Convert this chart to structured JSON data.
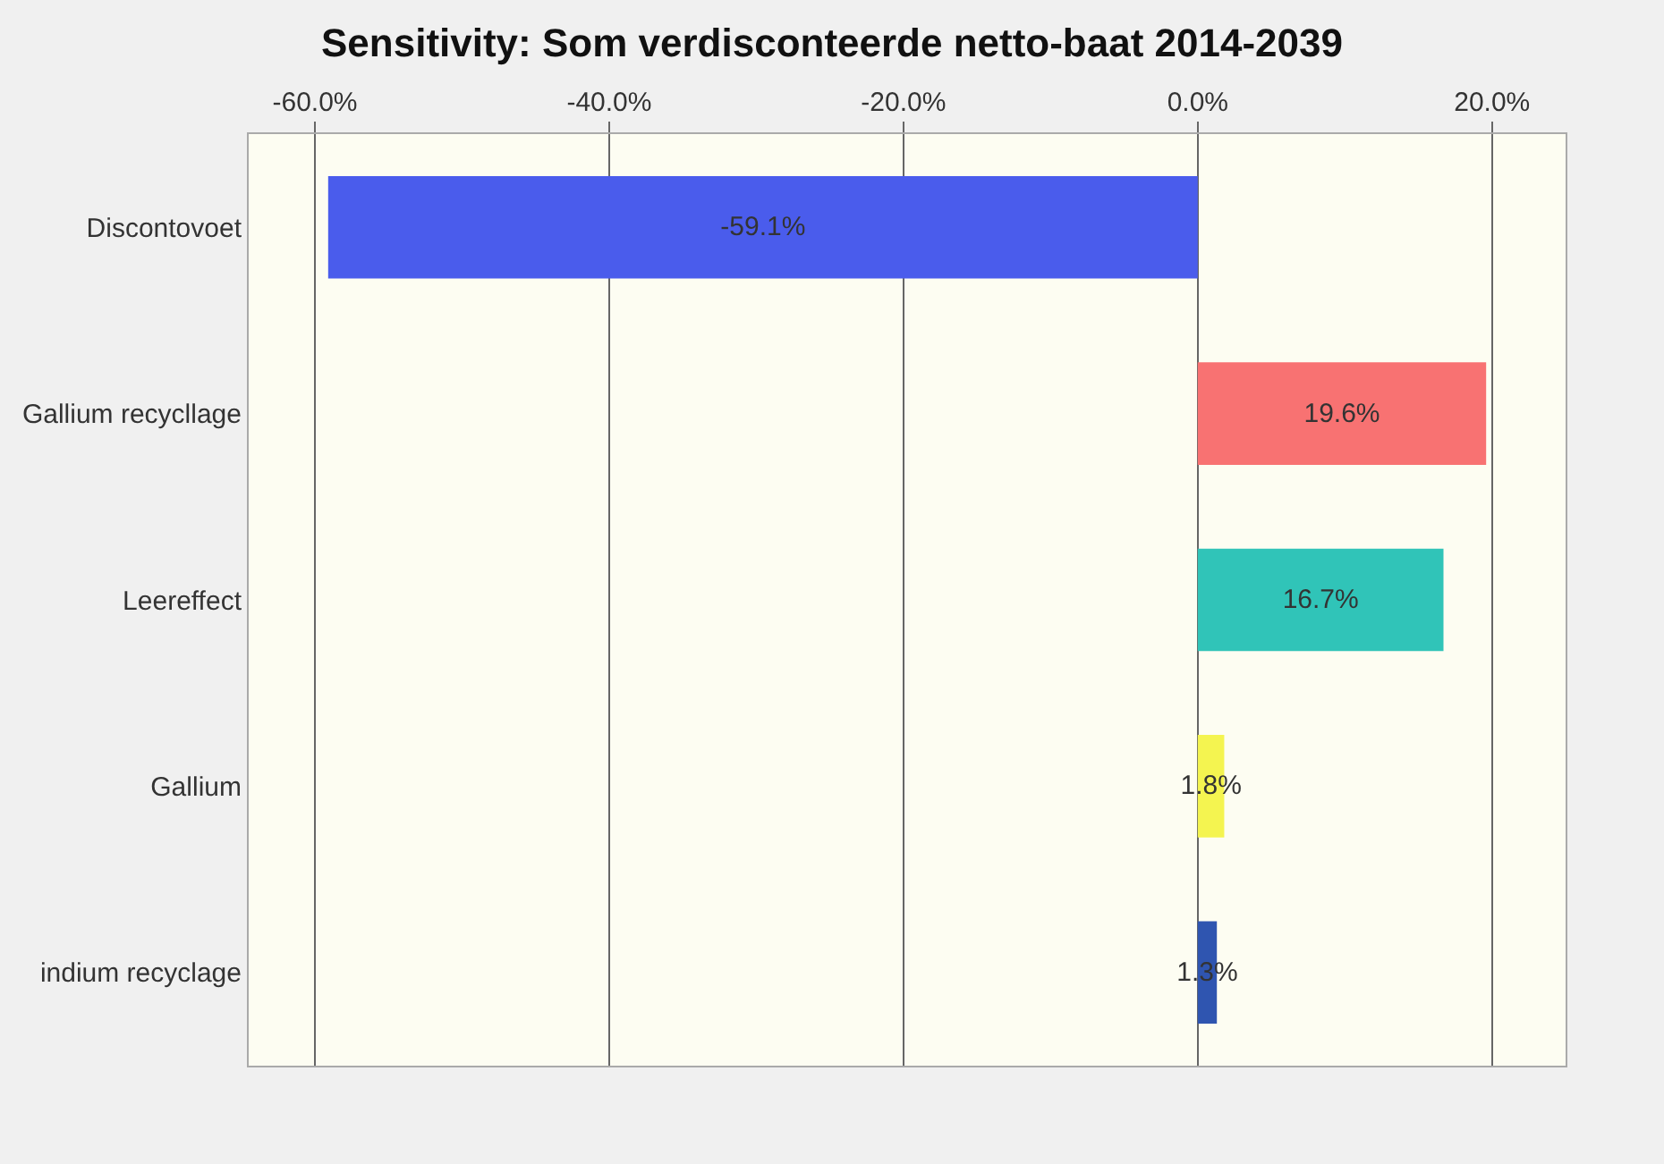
{
  "chart_data": {
    "type": "bar",
    "orientation": "horizontal",
    "title": "Sensitivity: Som verdisconteerde netto-baat 2014-2039",
    "categories": [
      "Discontovoet",
      "Gallium recycllage",
      "Leereffect",
      "Gallium",
      "indium recyclage"
    ],
    "values": [
      -59.1,
      19.6,
      16.7,
      1.8,
      1.3
    ],
    "value_labels": [
      "-59.1%",
      "19.6%",
      "16.7%",
      "1.8%",
      "1.3%"
    ],
    "colors": [
      "#4a5cec",
      "#f87272",
      "#30c4b8",
      "#f4f450",
      "#2f55b0"
    ],
    "xlim": [
      -64.5,
      25
    ],
    "xticks": [
      {
        "value": -60,
        "label": "-60.0%"
      },
      {
        "value": -40,
        "label": "-40.0%"
      },
      {
        "value": -20,
        "label": "-20.0%"
      },
      {
        "value": 0,
        "label": "0.0%"
      },
      {
        "value": 20,
        "label": "20.0%"
      }
    ],
    "grid": "x"
  }
}
